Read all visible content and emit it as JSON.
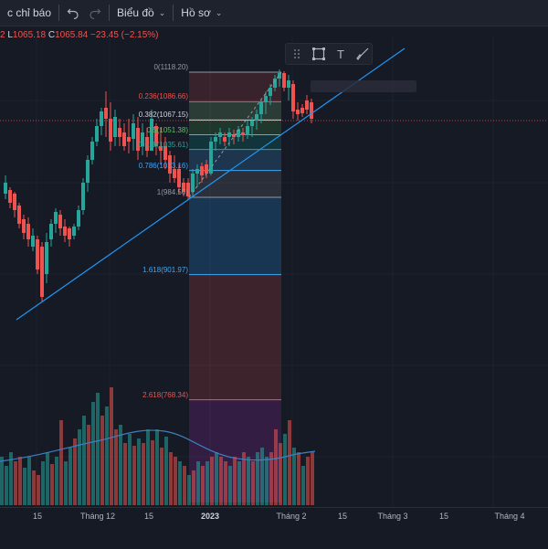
{
  "toolbar": {
    "indicators_label": "c chỉ báo",
    "undo_icon": "undo-icon",
    "redo_icon": "redo-icon",
    "chart_label": "Biểu đồ",
    "profile_label": "Hồ sơ"
  },
  "ohlc": {
    "lead": "2",
    "low_label": "L",
    "low_value": "1065.18",
    "close_label": "C",
    "close_value": "1065.84",
    "change": "−23.45 (−2.15%)"
  },
  "drawing_toolbar": {
    "icons": [
      "drag-handle-icon",
      "rectangle-icon",
      "text-icon",
      "brush-icon"
    ],
    "text_glyph": "T"
  },
  "fib_levels": [
    {
      "text": "0(1118.20)",
      "price": 1118.2,
      "color": "#9598a1"
    },
    {
      "text": "0.236(1086.66)",
      "price": 1086.66,
      "color": "#ef5350"
    },
    {
      "text": "0.382(1067.15)",
      "price": 1067.15,
      "color": "#d1d4dc"
    },
    {
      "text": "0.5(1051.38)",
      "price": 1051.38,
      "color": "#66bb6a"
    },
    {
      "text": "0.618(1035.61)",
      "price": 1035.61,
      "color": "#26a69a"
    },
    {
      "text": "0.786(1013.16)",
      "price": 1013.16,
      "color": "#42a5f5"
    },
    {
      "text": "1(984.56)",
      "price": 984.56,
      "color": "#9598a1"
    },
    {
      "text": "1.618(901.97)",
      "price": 901.97,
      "color": "#42a5f5"
    },
    {
      "text": "2.618(768.34)",
      "price": 768.34,
      "color": "#ef5350"
    }
  ],
  "time_axis": [
    {
      "label": "15",
      "bold": false
    },
    {
      "label": "Tháng 12",
      "bold": false
    },
    {
      "label": "15",
      "bold": false
    },
    {
      "label": "2023",
      "bold": true
    },
    {
      "label": "Tháng 2",
      "bold": false
    },
    {
      "label": "15",
      "bold": false
    },
    {
      "label": "Tháng 3",
      "bold": false
    },
    {
      "label": "15",
      "bold": false
    },
    {
      "label": "Tháng 4",
      "bold": false
    }
  ],
  "colors": {
    "up": "#26a69a",
    "down": "#ef5350",
    "trendline": "#2196f3",
    "volume_ma": "#3f7fc1"
  }
}
